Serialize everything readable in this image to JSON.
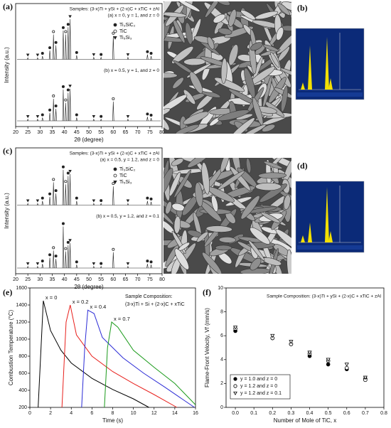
{
  "chart_data": [
    {
      "type": "xrd",
      "panel": "(a)",
      "title": "Samples: (3-x)Ti + ySi + (2-x)C + xTiC + zAl",
      "xlabel": "2θ (degree)",
      "ylabel": "Intensity (a.u.)",
      "xlim": [
        20,
        80
      ],
      "xticks": [
        20,
        25,
        30,
        35,
        40,
        45,
        50,
        55,
        60,
        65,
        70,
        75,
        80
      ],
      "ylim": [
        0,
        100
      ],
      "legend": [
        {
          "name": "Ti₃SiC₂",
          "marker": "filled-circle"
        },
        {
          "name": "TiC",
          "marker": "open-circle"
        },
        {
          "name": "Ti₅Si₃",
          "marker": "filled-triangle"
        }
      ],
      "series": [
        {
          "name": "(a) x = 0, y = 1, and z = 0",
          "color": "#222222",
          "x": [
            25,
            29,
            31,
            34,
            35.5,
            36.5,
            39.5,
            40.5,
            41.5,
            42.3,
            45,
            52,
            55,
            60,
            66,
            74,
            75.5
          ],
          "values": [
            4,
            4,
            8,
            22,
            62,
            35,
            72,
            62,
            80,
            100,
            10,
            5,
            5,
            58,
            5,
            12,
            8
          ],
          "phase": [
            2,
            2,
            0,
            0,
            1,
            0,
            0,
            1,
            0,
            2,
            0,
            2,
            0,
            1,
            2,
            0,
            0
          ]
        },
        {
          "name": "(b) x = 0.5, y = 1, and  z = 0",
          "color": "#222222",
          "x": [
            25,
            29,
            31,
            34,
            35.5,
            36.5,
            39.5,
            40.5,
            41.5,
            42.3,
            45,
            52,
            55,
            60,
            66,
            74,
            75.5
          ],
          "values": [
            4,
            4,
            8,
            20,
            55,
            30,
            78,
            45,
            70,
            80,
            8,
            4,
            4,
            48,
            4,
            10,
            7
          ],
          "phase": [
            2,
            2,
            0,
            0,
            1,
            0,
            0,
            1,
            0,
            2,
            0,
            2,
            0,
            1,
            2,
            0,
            0
          ]
        }
      ]
    },
    {
      "type": "xrd",
      "panel": "(c)",
      "title": "Samples: (3-x)Ti + ySi + (2-x)C + xTiC + zAl",
      "xlabel": "2θ (degree)",
      "ylabel": "Intensity (a.u.)",
      "xlim": [
        20,
        80
      ],
      "xticks": [
        20,
        25,
        30,
        35,
        40,
        45,
        50,
        55,
        60,
        65,
        70,
        75,
        80
      ],
      "ylim": [
        0,
        100
      ],
      "legend": [
        {
          "name": "Ti₃SiC₂",
          "marker": "filled-circle"
        },
        {
          "name": "TiC",
          "marker": "open-circle"
        },
        {
          "name": "Ti₅Si₃",
          "marker": "filled-triangle"
        }
      ],
      "series": [
        {
          "name": "(a) x = 0.5, y = 1.2, and z = 0",
          "color": "#222222",
          "x": [
            25,
            29,
            31,
            34,
            35.5,
            36.5,
            39.5,
            40.5,
            41.5,
            42.3,
            45,
            52,
            55,
            60,
            66,
            74,
            75.5
          ],
          "values": [
            4,
            4,
            10,
            20,
            55,
            28,
            85,
            50,
            70,
            75,
            10,
            4,
            4,
            45,
            4,
            10,
            8
          ],
          "phase": [
            2,
            2,
            0,
            0,
            1,
            0,
            0,
            1,
            0,
            2,
            0,
            2,
            0,
            1,
            2,
            0,
            0
          ]
        },
        {
          "name": "(b) x = 0.5, y = 1.2, and  z = 0.1",
          "color": "#222222",
          "x": [
            25,
            29,
            31,
            34,
            35.5,
            36.5,
            39.5,
            40.5,
            41.5,
            42.3,
            45,
            52,
            55,
            60,
            66,
            74,
            75.5
          ],
          "values": [
            4,
            4,
            10,
            25,
            42,
            22,
            100,
            40,
            55,
            60,
            8,
            4,
            4,
            38,
            4,
            10,
            8
          ],
          "phase": [
            2,
            2,
            0,
            0,
            1,
            0,
            0,
            1,
            0,
            2,
            0,
            2,
            0,
            1,
            2,
            0,
            0
          ]
        }
      ]
    },
    {
      "type": "line",
      "panel": "(e)",
      "annotation": [
        "Sample Composition:",
        "(3-x)Ti + Si + (2-x)C + xTiC"
      ],
      "xlabel": "Time (s)",
      "ylabel": "Combustion Temperature (°C)",
      "xlim": [
        0,
        16
      ],
      "xticks": [
        0,
        2,
        4,
        6,
        8,
        10,
        12,
        14,
        16
      ],
      "ylim": [
        200,
        1600
      ],
      "yticks": [
        200,
        400,
        600,
        800,
        1000,
        1200,
        1400,
        1600
      ],
      "series": [
        {
          "name": "x = 0",
          "color": "#000000",
          "x": [
            0.8,
            1.3,
            2,
            3,
            4,
            6,
            8,
            10,
            11.5
          ],
          "values": [
            200,
            1450,
            1100,
            870,
            720,
            540,
            410,
            300,
            200
          ]
        },
        {
          "name": "x = 0.2",
          "color": "#e8201c",
          "x": [
            3.1,
            3.5,
            3.9,
            4.5,
            6,
            8,
            10,
            12,
            14.2
          ],
          "values": [
            200,
            1200,
            1400,
            1050,
            800,
            620,
            480,
            350,
            200
          ]
        },
        {
          "name": "x = 0.4",
          "color": "#2b2bd6",
          "x": [
            5.0,
            5.3,
            5.6,
            6.2,
            7,
            9,
            11,
            13,
            15.9
          ],
          "values": [
            200,
            900,
            1340,
            1300,
            1020,
            780,
            600,
            440,
            200
          ]
        },
        {
          "name": "x = 0.7",
          "color": "#1a9a1a",
          "x": [
            7.2,
            7.5,
            7.9,
            8.5,
            10,
            12,
            14,
            16
          ],
          "values": [
            200,
            900,
            1200,
            1140,
            870,
            670,
            480,
            230
          ]
        }
      ]
    },
    {
      "type": "scatter",
      "panel": "(f)",
      "annotation": [
        "Sample Composition: (3-x)Ti + ySi + (2-x)C + xTiC + zAl"
      ],
      "xlabel": "Number of Mole of TiC, x",
      "ylabel": "Flame-Front Velocity, Vf (mm/s)",
      "xlim": [
        -0.05,
        0.8
      ],
      "xticks": [
        {
          "value": 0,
          "label": "0.0"
        },
        0.1,
        0.2,
        0.3,
        0.4,
        0.5,
        0.6,
        0.7,
        0.8
      ],
      "ylim": [
        0,
        10
      ],
      "yticks": [
        0,
        2,
        4,
        6,
        8,
        10
      ],
      "legend": "lower left",
      "series": [
        {
          "name": "y = 1.0 and z = 0",
          "marker": "filled-circle",
          "color": "#000000",
          "x": [
            0,
            0.2,
            0.3,
            0.4,
            0.5,
            0.6,
            0.7
          ],
          "values": [
            6.4,
            5.8,
            5.3,
            4.3,
            3.6,
            3.2,
            2.4
          ]
        },
        {
          "name": "y = 1.2 and z = 0",
          "marker": "open-circle",
          "color": "#000000",
          "x": [
            0,
            0.2,
            0.3,
            0.4,
            0.5,
            0.6,
            0.7
          ],
          "values": [
            6.6,
            5.8,
            5.3,
            4.5,
            3.9,
            3.3,
            2.3
          ]
        },
        {
          "name": "y = 1.2 and z = 0.1",
          "marker": "open-triangle",
          "color": "#000000",
          "x": [
            0,
            0.2,
            0.3,
            0.4,
            0.5,
            0.6,
            0.7
          ],
          "values": [
            6.7,
            6.0,
            5.5,
            4.6,
            4.0,
            3.6,
            2.5
          ]
        }
      ]
    }
  ],
  "images": [
    {
      "panel": "(b)"
    },
    {
      "panel": "(d)"
    }
  ]
}
